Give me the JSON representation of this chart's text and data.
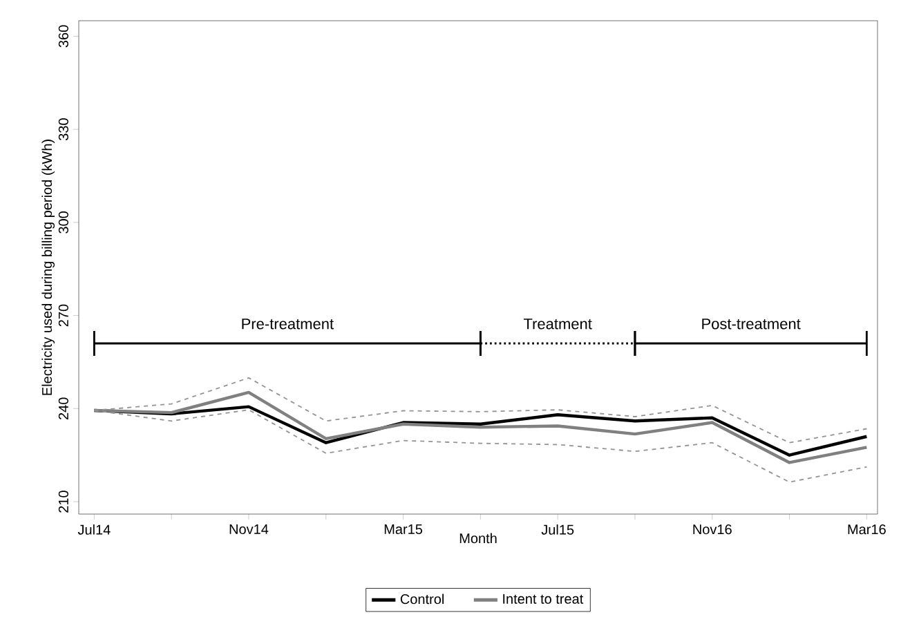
{
  "chart_data": {
    "type": "line",
    "xlabel": "Month",
    "ylabel": "Electricity used during billing period (kWh)",
    "categories": [
      "Jul14",
      null,
      "Nov14",
      null,
      "Mar15",
      null,
      "Jul15",
      null,
      "Nov16",
      null,
      "Mar16"
    ],
    "series": [
      {
        "name": "Control",
        "color": "#000000",
        "values": [
          239.4,
          238.3,
          240.6,
          229,
          235.5,
          235,
          238,
          236,
          237,
          225,
          231
        ]
      },
      {
        "name": "Intent to treat",
        "color": "#808080",
        "values": [
          239.4,
          238.7,
          245.2,
          230.3,
          235,
          234,
          234.4,
          231.8,
          235.5,
          222.6,
          227.5
        ]
      },
      {
        "color": "#939393",
        "line_style": "dashed",
        "values": [
          239.4,
          241.5,
          249.9,
          236,
          239.3,
          239,
          239.6,
          237.4,
          241,
          229,
          233.5
        ]
      },
      {
        "color": "#939393",
        "line_style": "dashed",
        "values": [
          239.4,
          236,
          239.6,
          225.6,
          229.7,
          228.8,
          228.4,
          226.2,
          229,
          216.3,
          221.2
        ]
      }
    ],
    "annotations": [
      "Pre-treatment",
      "Treatment",
      "Post-treatment"
    ],
    "ylim": [
      206,
      365
    ],
    "yticks": [
      210,
      240,
      270,
      300,
      330,
      360
    ],
    "legend": "bottom",
    "line_style": "solid",
    "marker": "none"
  }
}
